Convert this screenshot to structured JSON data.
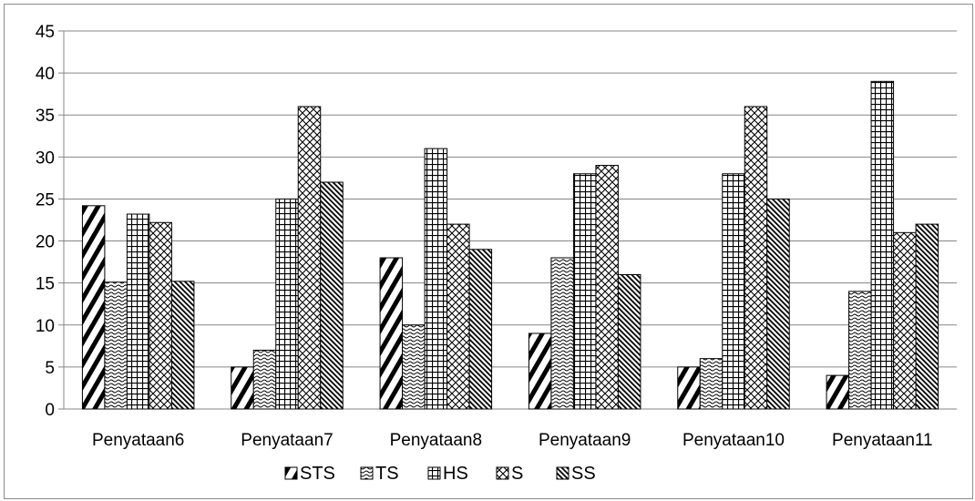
{
  "chart_data": {
    "type": "bar",
    "categories": [
      "Penyataan6",
      "Penyataan7",
      "Penyataan8",
      "Penyataan9",
      "Penyataan10",
      "Penyataan11"
    ],
    "series": [
      {
        "name": "STS",
        "values": [
          24.2,
          5,
          18,
          9,
          5,
          4
        ],
        "pattern": "diag-wide"
      },
      {
        "name": "TS",
        "values": [
          15.1,
          7,
          10,
          18,
          6,
          14
        ],
        "pattern": "wave"
      },
      {
        "name": "HS",
        "values": [
          23.2,
          25,
          31,
          28,
          28,
          39
        ],
        "pattern": "grid"
      },
      {
        "name": "S",
        "values": [
          22.2,
          36,
          22,
          29,
          36,
          21
        ],
        "pattern": "diamond"
      },
      {
        "name": "SS",
        "values": [
          15.2,
          27,
          19,
          16,
          25,
          22
        ],
        "pattern": "diag-dense"
      }
    ],
    "y_ticks": [
      "0",
      "5",
      "10",
      "15",
      "20",
      "25",
      "30",
      "35",
      "40",
      "45"
    ],
    "ylim": [
      0,
      45
    ],
    "grid": true,
    "legend_position": "bottom",
    "colors": {
      "bar_fill": "#ffffff",
      "pattern": "#000000",
      "grid": "#868686"
    }
  }
}
